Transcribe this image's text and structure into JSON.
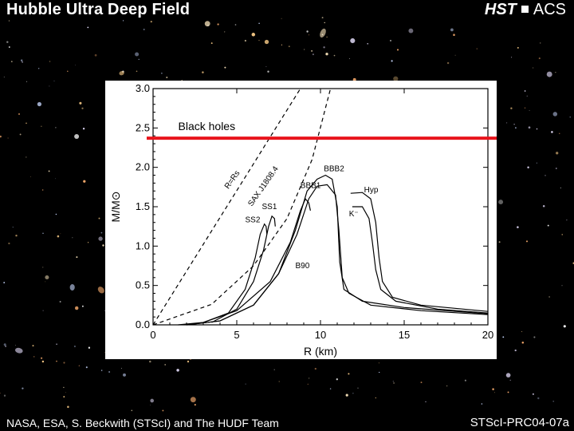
{
  "header": {
    "title": "Hubble Ultra Deep Field",
    "right_hst": "HST",
    "right_acs": "ACS"
  },
  "footer": {
    "credit": "NASA, ESA, S. Beckwith (STScI) and The HUDF Team",
    "id": "STScI-PRC04-07a"
  },
  "chart_data": {
    "type": "line",
    "xlabel": "R (km)",
    "ylabel": "M/M⊙",
    "xlim": [
      0,
      20
    ],
    "ylim": [
      0,
      3
    ],
    "xticks": [
      0,
      5,
      10,
      15,
      20
    ],
    "yticks": [
      0.0,
      0.5,
      1.0,
      1.5,
      2.0,
      2.5,
      3.0
    ],
    "ytick_labels": [
      "0.0",
      "0.5",
      "1.0",
      "1.5",
      "2.0",
      "2.5",
      "3.0"
    ],
    "black_hole_line": {
      "y": 2.37,
      "label": "Black holes",
      "color": "#e8141c"
    },
    "dashed_lines": [
      {
        "name": "R=Rs",
        "points": [
          [
            0,
            0
          ],
          [
            8.8,
            3.0
          ]
        ]
      },
      {
        "name": "SAX J1808.4",
        "points": [
          [
            0,
            0
          ],
          [
            3.5,
            0.26
          ],
          [
            6,
            0.75
          ],
          [
            8,
            1.35
          ],
          [
            9.5,
            2.1
          ],
          [
            10.6,
            3.0
          ]
        ]
      }
    ],
    "annotations": [
      {
        "text": "R=Rs",
        "x": 4.5,
        "y": 1.72,
        "rotate": -55
      },
      {
        "text": "SAX J1808.4",
        "x": 5.9,
        "y": 1.5,
        "rotate": -55
      },
      {
        "text": "SS1",
        "x": 6.5,
        "y": 1.47
      },
      {
        "text": "SS2",
        "x": 5.5,
        "y": 1.3
      },
      {
        "text": "BBB2",
        "x": 10.2,
        "y": 1.95
      },
      {
        "text": "BBB1",
        "x": 8.8,
        "y": 1.74
      },
      {
        "text": "Hyp",
        "x": 12.6,
        "y": 1.68
      },
      {
        "text": "K⁻",
        "x": 11.7,
        "y": 1.38
      },
      {
        "text": "B90",
        "x": 8.5,
        "y": 0.72
      }
    ],
    "series": [
      {
        "values": [
          [
            3,
            0.03
          ],
          [
            4.5,
            0.15
          ],
          [
            5.5,
            0.45
          ],
          [
            6.1,
            0.85
          ],
          [
            6.4,
            1.15
          ],
          [
            6.65,
            1.28
          ],
          [
            6.75,
            1.25
          ],
          [
            6.8,
            1.15
          ]
        ]
      },
      {
        "values": [
          [
            3.5,
            0.03
          ],
          [
            5,
            0.2
          ],
          [
            6,
            0.55
          ],
          [
            6.6,
            0.95
          ],
          [
            6.9,
            1.25
          ],
          [
            7.1,
            1.38
          ],
          [
            7.25,
            1.35
          ],
          [
            7.3,
            1.25
          ]
        ]
      },
      {
        "values": [
          [
            1.5,
            0
          ],
          [
            3,
            0.03
          ],
          [
            5,
            0.18
          ],
          [
            7,
            0.55
          ],
          [
            8.2,
            1.05
          ],
          [
            8.8,
            1.45
          ],
          [
            9.1,
            1.6
          ],
          [
            9.3,
            1.55
          ],
          [
            9.4,
            1.45
          ]
        ]
      },
      {
        "values": [
          [
            2,
            0
          ],
          [
            4,
            0.05
          ],
          [
            6,
            0.25
          ],
          [
            7.5,
            0.65
          ],
          [
            8.5,
            1.2
          ],
          [
            9.2,
            1.7
          ],
          [
            9.8,
            1.85
          ],
          [
            10.3,
            1.9
          ],
          [
            10.7,
            1.85
          ],
          [
            11,
            1.5
          ],
          [
            11.15,
            0.8
          ],
          [
            11.4,
            0.45
          ],
          [
            12.5,
            0.3
          ],
          [
            15,
            0.22
          ],
          [
            20,
            0.14
          ]
        ]
      },
      {
        "values": [
          [
            2,
            0
          ],
          [
            4,
            0.05
          ],
          [
            6,
            0.25
          ],
          [
            7.5,
            0.65
          ],
          [
            8.6,
            1.15
          ],
          [
            9.3,
            1.6
          ],
          [
            9.8,
            1.76
          ],
          [
            10.4,
            1.78
          ],
          [
            10.9,
            1.65
          ],
          [
            11.1,
            1.2
          ],
          [
            11.3,
            0.6
          ],
          [
            11.7,
            0.4
          ],
          [
            13,
            0.25
          ],
          [
            16,
            0.18
          ],
          [
            20,
            0.13
          ]
        ]
      },
      {
        "values": [
          [
            11.8,
            1.67
          ],
          [
            12.5,
            1.68
          ],
          [
            13,
            1.6
          ],
          [
            13.3,
            1.3
          ],
          [
            13.5,
            0.85
          ],
          [
            13.7,
            0.55
          ],
          [
            14.3,
            0.35
          ],
          [
            16,
            0.25
          ],
          [
            20,
            0.17
          ]
        ]
      },
      {
        "values": [
          [
            11.9,
            1.5
          ],
          [
            12.5,
            1.5
          ],
          [
            12.9,
            1.35
          ],
          [
            13.1,
            1.05
          ],
          [
            13.3,
            0.7
          ],
          [
            13.6,
            0.45
          ],
          [
            14.5,
            0.3
          ],
          [
            17,
            0.2
          ],
          [
            20,
            0.15
          ]
        ]
      }
    ]
  }
}
